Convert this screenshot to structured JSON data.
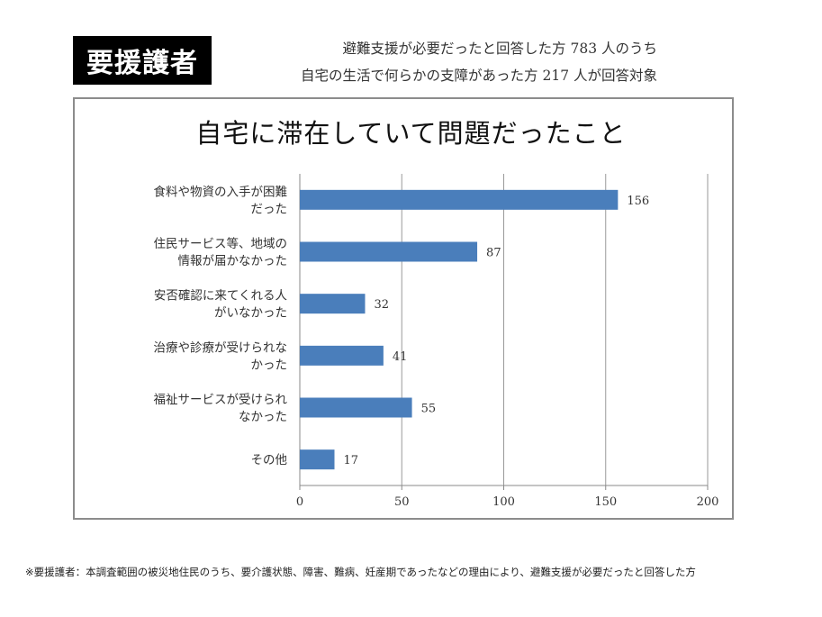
{
  "badge": "要援護者",
  "subtitle_line1": "避難支援が必要だったと回答した方 783 人のうち",
  "subtitle_line2": "自宅の生活で何らかの支障があった方 217 人が回答対象",
  "footnote": "※要援護者：本調査範囲の被災地住民のうち、要介護状態、障害、難病、妊産期であったなどの理由により、避難支援が必要だったと回答した方",
  "chart_data": {
    "type": "bar",
    "orientation": "horizontal",
    "title": "自宅に滞在していて問題だったこと",
    "categories": [
      [
        "食料や物資の入手が困難",
        "だった"
      ],
      [
        "住民サービス等、地域の",
        "情報が届かなかった"
      ],
      [
        "安否確認に来てくれる人",
        "がいなかった"
      ],
      [
        "治療や診療が受けられな",
        "かった"
      ],
      [
        "福祉サービスが受けられ",
        "なかった"
      ],
      [
        "その他"
      ]
    ],
    "values": [
      156,
      87,
      32,
      41,
      55,
      17
    ],
    "xlim": [
      0,
      200
    ],
    "xticks": [
      0,
      50,
      100,
      150,
      200
    ],
    "grid": "vertical",
    "bar_color": "#4a7ebb",
    "data_labels": true
  }
}
